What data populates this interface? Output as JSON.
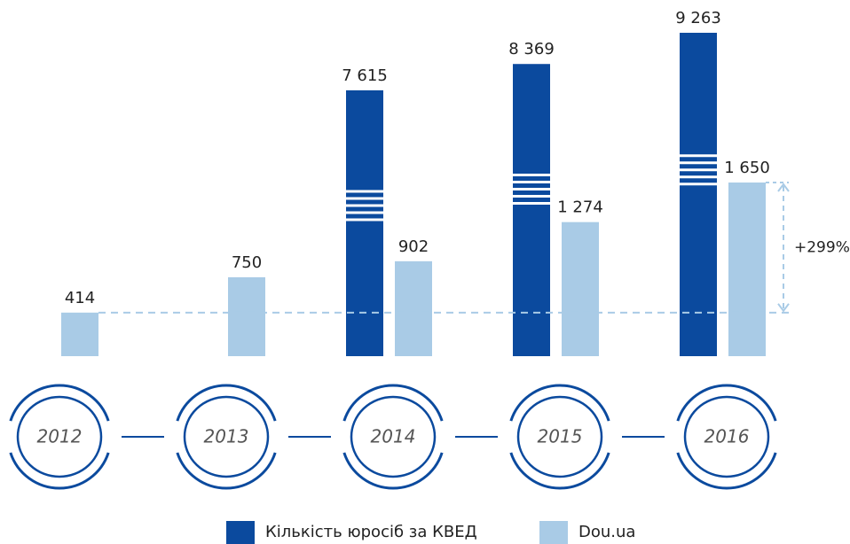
{
  "chart_data": {
    "type": "bar",
    "categories": [
      "2012",
      "2013",
      "2014",
      "2015",
      "2016"
    ],
    "series": [
      {
        "name": "Кількість юросіб за КВЕД",
        "color": "#0b4a9e",
        "values": [
          null,
          null,
          7615,
          8369,
          9263
        ],
        "value_labels": [
          null,
          null,
          "7 615",
          "8 369",
          "9 263"
        ]
      },
      {
        "name": "Dou.ua",
        "color": "#a9cbe6",
        "values": [
          414,
          750,
          902,
          1274,
          1650
        ],
        "value_labels": [
          "414",
          "750",
          "902",
          "1 274",
          "1 650"
        ]
      }
    ],
    "annotation": "+299%"
  }
}
